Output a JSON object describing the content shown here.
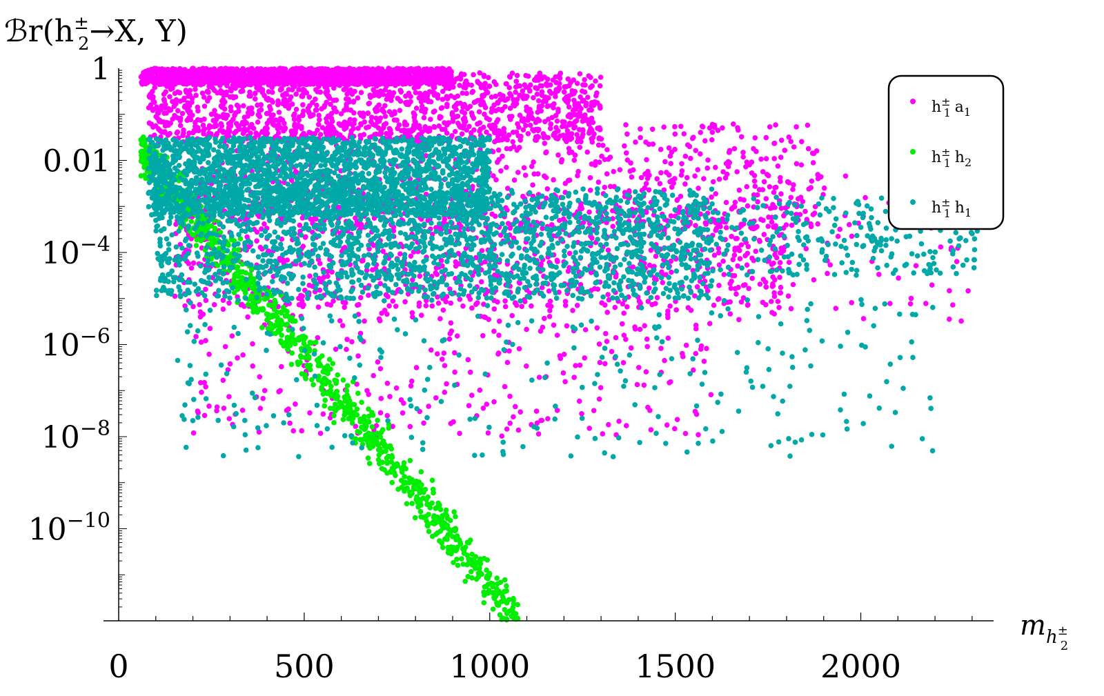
{
  "chart_data": {
    "type": "scatter",
    "ylabel": "ℬr(h₂± → X, Y)",
    "ylabel_parts": {
      "main": "ℬr(h",
      "sup": "±",
      "sub": "2",
      "rest": "→X, Y)"
    },
    "xlabel_parts": {
      "main": "m",
      "sub": "h",
      "subsub": "2",
      "subsup": "±"
    },
    "xlim": [
      0,
      2330
    ],
    "ylim_log10": [
      -12,
      0
    ],
    "y_scale": "log",
    "x_ticks": [
      0,
      500,
      1000,
      1500,
      2000
    ],
    "x_tick_labels": [
      "0",
      "500",
      "1000",
      "1500",
      "2000"
    ],
    "y_ticks_log10": [
      0,
      -2,
      -4,
      -6,
      -8,
      -10
    ],
    "y_tick_labels": [
      {
        "base": "1",
        "exp": ""
      },
      {
        "base": "0.01",
        "exp": ""
      },
      {
        "base": "10",
        "exp": "−4"
      },
      {
        "base": "10",
        "exp": "−6"
      },
      {
        "base": "10",
        "exp": "−8"
      },
      {
        "base": "10",
        "exp": "−10"
      }
    ],
    "legend_position": "top-right",
    "series": [
      {
        "name": "h1± a1",
        "label_parts": {
          "a": "h",
          "a_sub": "1",
          "a_sup": "±",
          "b": "a",
          "b_sub": "1"
        },
        "color": "#ff00ff",
        "clusters": [
          {
            "x": [
              60,
              900
            ],
            "y_log10": [
              -0.35,
              0
            ],
            "n": 1400
          },
          {
            "x": [
              80,
              1300
            ],
            "y_log10": [
              -1.6,
              -0.1
            ],
            "n": 1300
          },
          {
            "x": [
              200,
              1900
            ],
            "y_log10": [
              -3.5,
              -1.2
            ],
            "n": 800
          },
          {
            "x": [
              150,
              1800
            ],
            "y_log10": [
              -5.2,
              -3.0
            ],
            "n": 900
          },
          {
            "x": [
              200,
              1600
            ],
            "y_log10": [
              -8.0,
              -5.0
            ],
            "n": 300
          },
          {
            "x": [
              1400,
              2310
            ],
            "y_log10": [
              -5.5,
              -2.0
            ],
            "n": 120
          }
        ]
      },
      {
        "name": "h1± h2",
        "label_parts": {
          "a": "h",
          "a_sub": "1",
          "a_sup": "±",
          "b": "h",
          "b_sub": "2"
        },
        "color": "#00ee00",
        "trend": {
          "x": [
            60,
            1080
          ],
          "y_log10_start": -1.8,
          "y_log10_end": -12.0,
          "spread": 0.9,
          "n": 1100
        }
      },
      {
        "name": "h1± h1",
        "label_parts": {
          "a": "h",
          "a_sub": "1",
          "a_sup": "±",
          "b": "h",
          "b_sub": "1"
        },
        "color": "#00a8a8",
        "clusters": [
          {
            "x": [
              80,
              1000
            ],
            "y_log10": [
              -3.2,
              -1.5
            ],
            "n": 2200
          },
          {
            "x": [
              100,
              1600
            ],
            "y_log10": [
              -5.0,
              -2.6
            ],
            "n": 1600
          },
          {
            "x": [
              600,
              2320
            ],
            "y_log10": [
              -4.5,
              -2.8
            ],
            "n": 500
          },
          {
            "x": [
              150,
              2200
            ],
            "y_log10": [
              -8.5,
              -5.0
            ],
            "n": 250
          }
        ]
      }
    ]
  }
}
